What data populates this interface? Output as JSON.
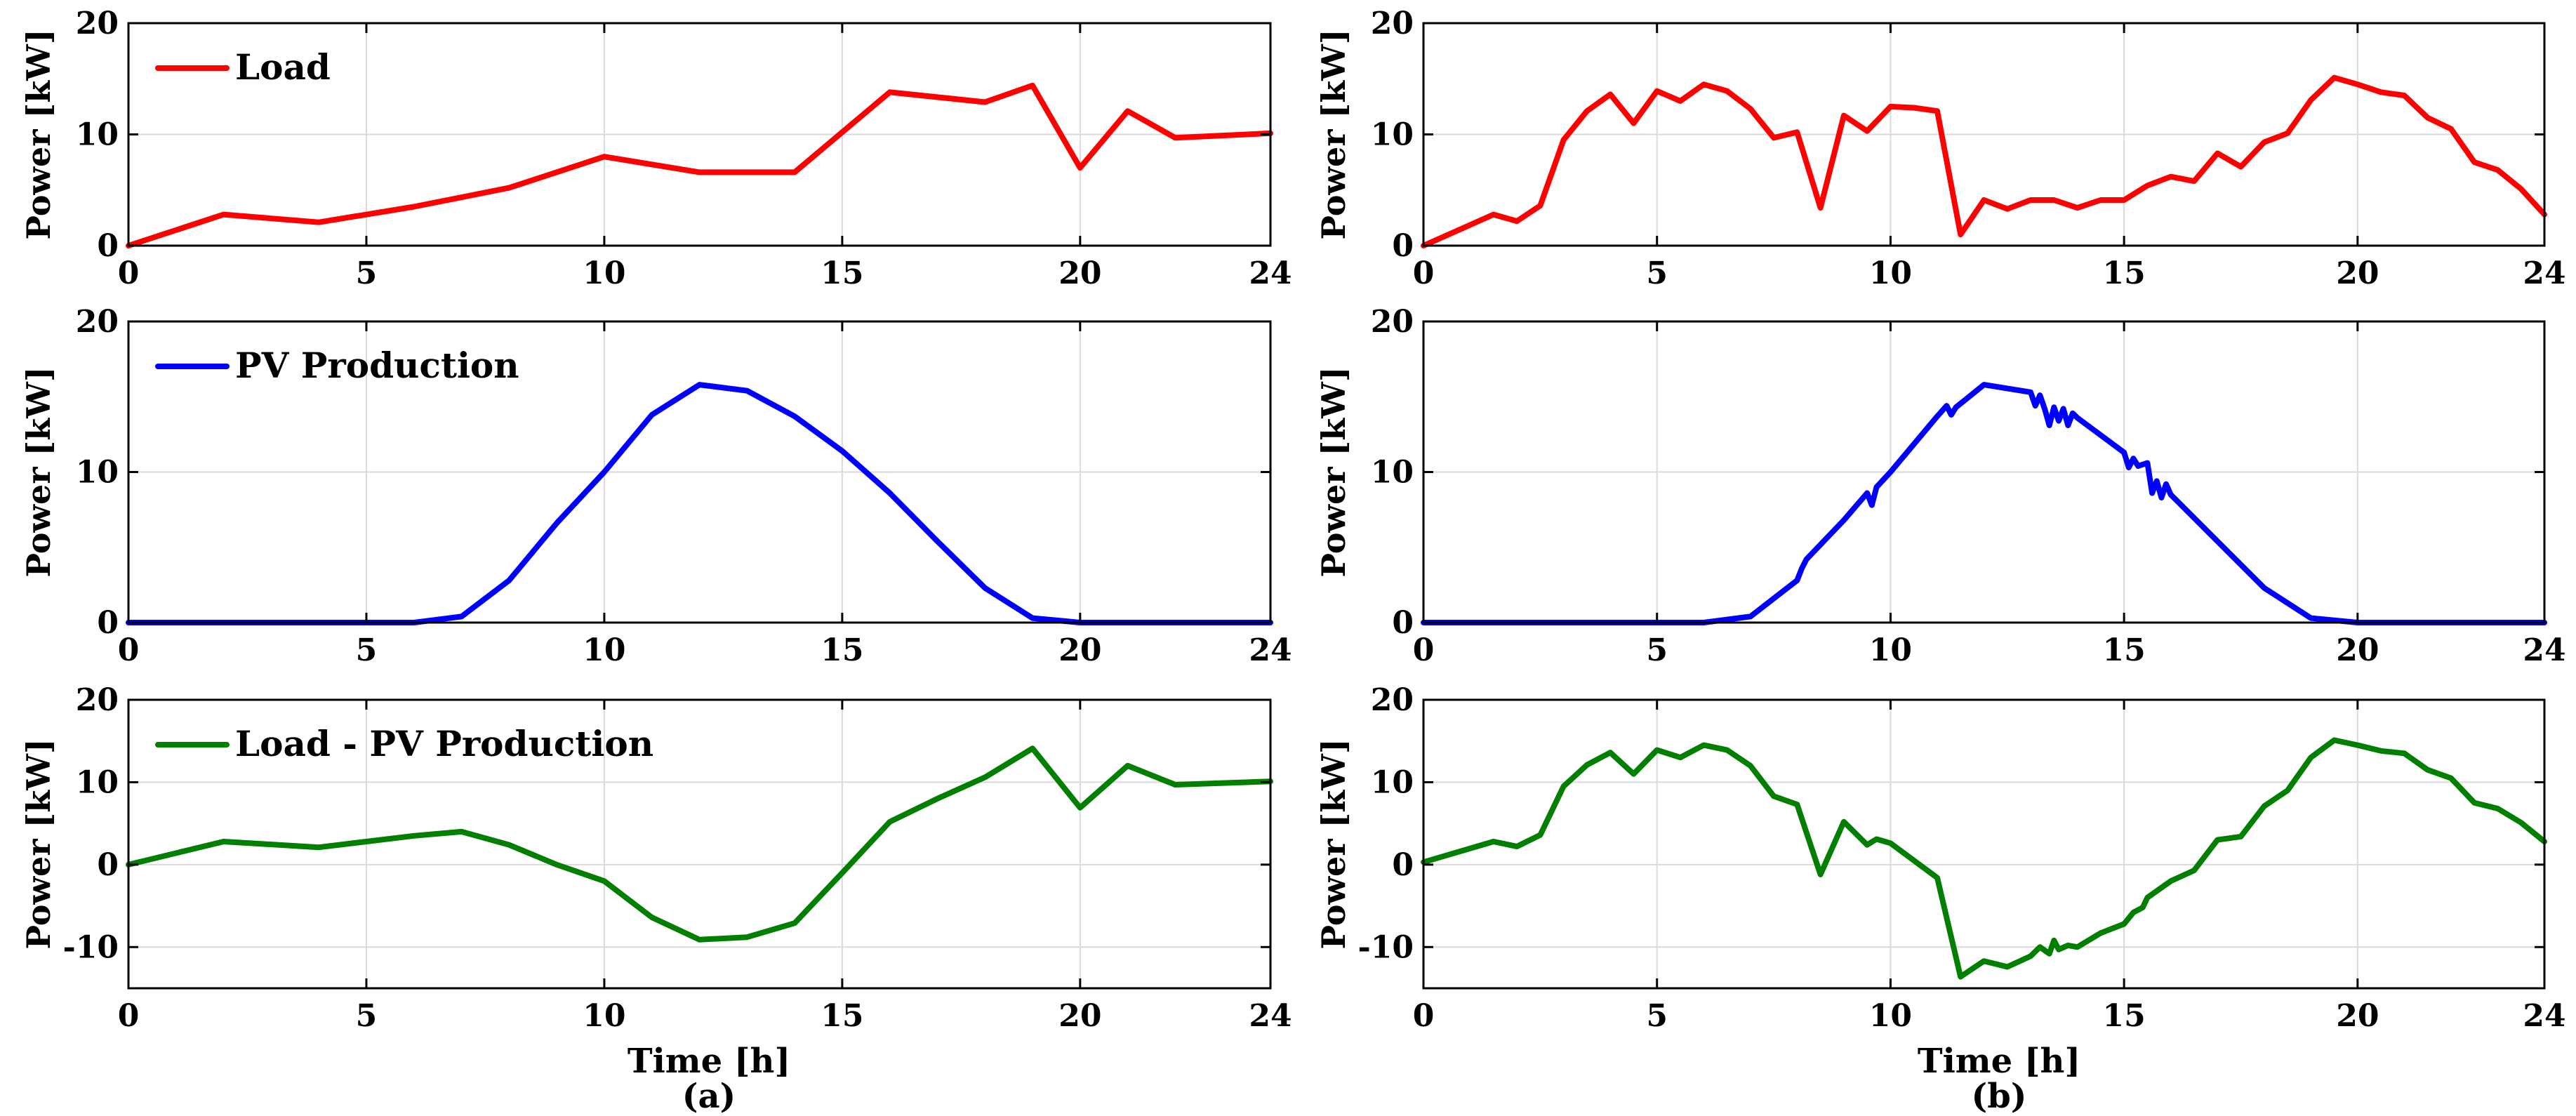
{
  "figure": {
    "x_label": "Time [h]",
    "captions": [
      "(a)",
      "(b)"
    ]
  },
  "chart_data": [
    {
      "id": "a1",
      "type": "line",
      "column": 0,
      "row": 0,
      "ylabel": "Power [kW]",
      "xlabel": "",
      "xlim": [
        0,
        24
      ],
      "ylim": [
        0,
        20
      ],
      "xticks": [
        0,
        5,
        10,
        15,
        20,
        24
      ],
      "yticks": [
        0,
        10,
        20
      ],
      "grid": true,
      "legend": {
        "label": "Load",
        "color": "#ff0000",
        "position": "top-left"
      },
      "series": [
        {
          "name": "Load",
          "color": "#ff0000",
          "x": [
            0,
            2,
            4,
            6,
            8,
            10,
            12,
            14,
            16,
            18,
            19,
            20,
            21,
            22,
            24
          ],
          "y": [
            0,
            2.8,
            2.1,
            3.5,
            5.2,
            8.0,
            6.6,
            6.6,
            13.8,
            12.9,
            14.4,
            7.0,
            12.1,
            9.7,
            10.1
          ]
        }
      ]
    },
    {
      "id": "a2",
      "type": "line",
      "column": 0,
      "row": 1,
      "ylabel": "Power [kW]",
      "xlabel": "",
      "xlim": [
        0,
        24
      ],
      "ylim": [
        0,
        20
      ],
      "xticks": [
        0,
        5,
        10,
        15,
        20,
        24
      ],
      "yticks": [
        0,
        10,
        20
      ],
      "grid": true,
      "legend": {
        "label": "PV Production",
        "color": "#0000ff",
        "position": "top-left"
      },
      "series": [
        {
          "name": "PV Production",
          "color": "#0000ff",
          "x": [
            0,
            6,
            7,
            8,
            9,
            10,
            11,
            12,
            13,
            14,
            15,
            16,
            17,
            18,
            19,
            20,
            24
          ],
          "y": [
            0,
            0,
            0.4,
            2.8,
            6.6,
            10.0,
            13.8,
            15.8,
            15.4,
            13.7,
            11.4,
            8.6,
            5.4,
            2.3,
            0.3,
            0,
            0
          ]
        }
      ]
    },
    {
      "id": "a3",
      "type": "line",
      "column": 0,
      "row": 2,
      "ylabel": "Power [kW]",
      "xlabel": "Time [h]",
      "xlim": [
        0,
        24
      ],
      "ylim": [
        -15,
        20
      ],
      "xticks": [
        0,
        5,
        10,
        15,
        20,
        24
      ],
      "yticks": [
        -10,
        0,
        10,
        20
      ],
      "grid": true,
      "legend": {
        "label": "Load - PV Production",
        "color": "#007f00",
        "position": "top-left"
      },
      "series": [
        {
          "name": "Load - PV Production",
          "color": "#007f00",
          "x": [
            0,
            2,
            4,
            6,
            7,
            8,
            9,
            10,
            11,
            12,
            13,
            14,
            15,
            16,
            17,
            18,
            19,
            20,
            21,
            22,
            24
          ],
          "y": [
            0,
            2.8,
            2.1,
            3.5,
            4.0,
            2.4,
            0,
            -2.0,
            -6.4,
            -9.1,
            -8.8,
            -7.1,
            -1.0,
            5.2,
            8.0,
            10.6,
            14.1,
            6.9,
            12.0,
            9.7,
            10.1
          ]
        }
      ]
    },
    {
      "id": "b1",
      "type": "line",
      "column": 1,
      "row": 0,
      "ylabel": "Power [kW]",
      "xlabel": "",
      "xlim": [
        0,
        24
      ],
      "ylim": [
        0,
        20
      ],
      "xticks": [
        0,
        5,
        10,
        15,
        20,
        24
      ],
      "yticks": [
        0,
        10,
        20
      ],
      "grid": true,
      "series": [
        {
          "name": "Load",
          "color": "#ff0000",
          "x": [
            0,
            1.5,
            2,
            2.5,
            3,
            3.5,
            4,
            4.5,
            5,
            5.5,
            6,
            6.5,
            7,
            7.5,
            8,
            8.5,
            9,
            9.5,
            10,
            10.5,
            11,
            11.5,
            12,
            12.5,
            13,
            13.5,
            14,
            14.5,
            15,
            15.5,
            16,
            16.5,
            17,
            17.5,
            18,
            18.5,
            19,
            19.5,
            20,
            20.5,
            21,
            21.5,
            22,
            22.5,
            23,
            23.5,
            24
          ],
          "y": [
            0,
            2.8,
            2.2,
            3.6,
            9.5,
            12.1,
            13.6,
            11.0,
            13.9,
            13.0,
            14.5,
            13.9,
            12.3,
            9.7,
            10.2,
            3.4,
            11.7,
            10.3,
            12.5,
            12.4,
            12.1,
            1.0,
            4.1,
            3.3,
            4.1,
            4.1,
            3.4,
            4.1,
            4.1,
            5.4,
            6.2,
            5.8,
            8.3,
            7.1,
            9.3,
            10.1,
            13.1,
            15.1,
            14.5,
            13.8,
            13.5,
            11.5,
            10.5,
            7.5,
            6.8,
            5.1,
            2.8
          ]
        }
      ]
    },
    {
      "id": "b2",
      "type": "line",
      "column": 1,
      "row": 1,
      "ylabel": "Power [kW]",
      "xlabel": "",
      "xlim": [
        0,
        24
      ],
      "ylim": [
        0,
        20
      ],
      "xticks": [
        0,
        5,
        10,
        15,
        20,
        24
      ],
      "yticks": [
        0,
        10,
        20
      ],
      "grid": true,
      "series": [
        {
          "name": "PV Production",
          "color": "#0000ff",
          "x": [
            0,
            6,
            7,
            8,
            8.1,
            8.2,
            9,
            9.5,
            9.6,
            9.7,
            10,
            11,
            11.2,
            11.3,
            11.4,
            12,
            13,
            13.1,
            13.2,
            13.3,
            13.4,
            13.5,
            13.6,
            13.7,
            13.8,
            13.9,
            14,
            15,
            15.1,
            15.2,
            15.3,
            15.5,
            15.6,
            15.7,
            15.8,
            15.9,
            16,
            17,
            18,
            19,
            20,
            24
          ],
          "y": [
            0,
            0,
            0.4,
            2.8,
            3.6,
            4.2,
            6.8,
            8.6,
            7.8,
            9.0,
            10.0,
            13.7,
            14.4,
            13.8,
            14.3,
            15.8,
            15.3,
            14.4,
            15.1,
            14.2,
            13.1,
            14.3,
            13.4,
            14.2,
            13.1,
            13.9,
            13.6,
            11.3,
            10.3,
            10.9,
            10.4,
            10.6,
            8.6,
            9.4,
            8.3,
            9.2,
            8.5,
            5.4,
            2.3,
            0.3,
            0,
            0
          ]
        }
      ]
    },
    {
      "id": "b3",
      "type": "line",
      "column": 1,
      "row": 2,
      "ylabel": "Power [kW]",
      "xlabel": "Time [h]",
      "xlim": [
        0,
        24
      ],
      "ylim": [
        -15,
        20
      ],
      "xticks": [
        0,
        5,
        10,
        15,
        20,
        24
      ],
      "yticks": [
        -10,
        0,
        10,
        20
      ],
      "grid": true,
      "series": [
        {
          "name": "Load - PV Production",
          "color": "#007f00",
          "x": [
            0,
            1.5,
            2,
            2.5,
            3,
            3.5,
            4,
            4.5,
            5,
            5.5,
            6,
            6.5,
            7,
            7.5,
            8,
            8.5,
            9,
            9.5,
            9.7,
            10,
            11,
            11.5,
            12,
            12.5,
            13,
            13.2,
            13.4,
            13.5,
            13.6,
            13.8,
            14,
            14.5,
            15,
            15.2,
            15.4,
            15.5,
            15.8,
            16,
            16.5,
            17,
            17.5,
            18,
            18.5,
            19,
            19.5,
            20,
            20.5,
            21,
            21.5,
            22,
            22.5,
            23,
            23.5,
            24
          ],
          "y": [
            0.3,
            2.8,
            2.2,
            3.6,
            9.5,
            12.1,
            13.6,
            11.0,
            13.9,
            13.0,
            14.5,
            13.9,
            12.0,
            8.3,
            7.3,
            -1.2,
            5.2,
            2.4,
            3.1,
            2.6,
            -1.6,
            -13.6,
            -11.7,
            -12.4,
            -11.1,
            -10.0,
            -10.8,
            -9.2,
            -10.3,
            -9.8,
            -10.0,
            -8.3,
            -7.2,
            -5.8,
            -5.2,
            -4.0,
            -2.8,
            -2.0,
            -0.7,
            3.0,
            3.4,
            7.1,
            9.0,
            13.0,
            15.1,
            14.5,
            13.8,
            13.5,
            11.5,
            10.5,
            7.5,
            6.8,
            5.1,
            2.8
          ]
        }
      ]
    }
  ]
}
